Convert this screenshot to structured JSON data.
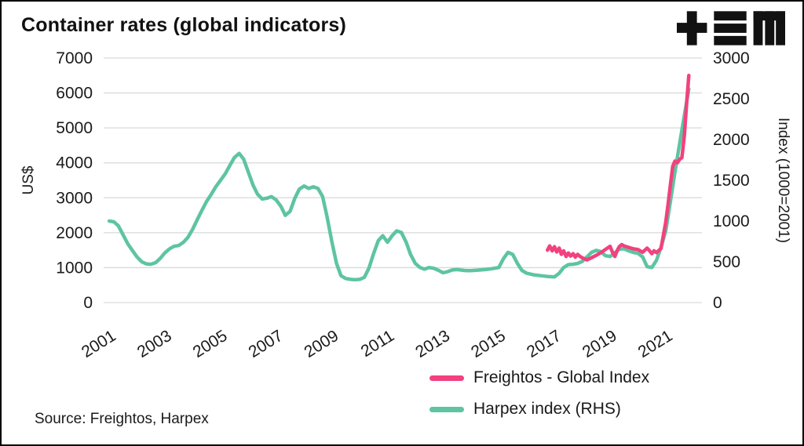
{
  "title": "Container rates (global indicators)",
  "source": "Source: Freightos, Harpex",
  "colors": {
    "freightos_pink": "#f2417f",
    "harpex_green": "#5ec4a2",
    "grid": "#d9d9d9",
    "text": "#1a1a1a",
    "background": "#ffffff",
    "logo_black": "#111111"
  },
  "chart_data": {
    "type": "line",
    "title": "Container rates (global indicators)",
    "xlabel": "",
    "ylabel_left": "US$",
    "ylabel_right": "Index (1000=2001)",
    "xlim": [
      2000.8,
      2022.3
    ],
    "ylim_left": [
      0,
      7000
    ],
    "ylim_right": [
      0,
      3000
    ],
    "yticks_left": [
      0,
      1000,
      2000,
      3000,
      4000,
      5000,
      6000,
      7000
    ],
    "yticks_right": [
      0,
      500,
      1000,
      1500,
      2000,
      2500,
      3000
    ],
    "xticks": [
      2001,
      2003,
      2005,
      2007,
      2009,
      2011,
      2013,
      2015,
      2017,
      2019,
      2021
    ],
    "grid": "horizontal",
    "legend_position": "bottom-right",
    "series": [
      {
        "name": "Freightos - Global Index",
        "axis": "left",
        "color": "#f2417f",
        "points": [
          [
            2016.75,
            1500
          ],
          [
            2016.83,
            1620
          ],
          [
            2016.92,
            1480
          ],
          [
            2017.0,
            1600
          ],
          [
            2017.08,
            1450
          ],
          [
            2017.17,
            1560
          ],
          [
            2017.25,
            1380
          ],
          [
            2017.33,
            1480
          ],
          [
            2017.42,
            1320
          ],
          [
            2017.5,
            1420
          ],
          [
            2017.58,
            1330
          ],
          [
            2017.67,
            1400
          ],
          [
            2017.75,
            1300
          ],
          [
            2017.83,
            1380
          ],
          [
            2017.92,
            1320
          ],
          [
            2018.0,
            1280
          ],
          [
            2018.17,
            1220
          ],
          [
            2018.33,
            1280
          ],
          [
            2018.5,
            1350
          ],
          [
            2018.67,
            1430
          ],
          [
            2018.83,
            1520
          ],
          [
            2019.0,
            1610
          ],
          [
            2019.08,
            1450
          ],
          [
            2019.17,
            1320
          ],
          [
            2019.25,
            1480
          ],
          [
            2019.33,
            1600
          ],
          [
            2019.42,
            1660
          ],
          [
            2019.5,
            1620
          ],
          [
            2019.67,
            1580
          ],
          [
            2019.83,
            1540
          ],
          [
            2020.0,
            1520
          ],
          [
            2020.17,
            1440
          ],
          [
            2020.33,
            1560
          ],
          [
            2020.42,
            1480
          ],
          [
            2020.5,
            1400
          ],
          [
            2020.58,
            1480
          ],
          [
            2020.67,
            1430
          ],
          [
            2020.83,
            1550
          ],
          [
            2021.0,
            2300
          ],
          [
            2021.08,
            2800
          ],
          [
            2021.17,
            3400
          ],
          [
            2021.25,
            3900
          ],
          [
            2021.33,
            4050
          ],
          [
            2021.42,
            4000
          ],
          [
            2021.5,
            4100
          ],
          [
            2021.58,
            4150
          ],
          [
            2021.67,
            4800
          ],
          [
            2021.75,
            5700
          ],
          [
            2021.83,
            6500
          ]
        ]
      },
      {
        "name": "Harpex index (RHS)",
        "axis": "right",
        "color": "#5ec4a2",
        "points": [
          [
            2001.0,
            1000
          ],
          [
            2001.17,
            990
          ],
          [
            2001.33,
            940
          ],
          [
            2001.5,
            830
          ],
          [
            2001.67,
            720
          ],
          [
            2001.83,
            640
          ],
          [
            2002.0,
            560
          ],
          [
            2002.17,
            500
          ],
          [
            2002.33,
            475
          ],
          [
            2002.5,
            470
          ],
          [
            2002.67,
            490
          ],
          [
            2002.83,
            540
          ],
          [
            2003.0,
            610
          ],
          [
            2003.17,
            660
          ],
          [
            2003.33,
            690
          ],
          [
            2003.5,
            700
          ],
          [
            2003.67,
            740
          ],
          [
            2003.83,
            800
          ],
          [
            2004.0,
            900
          ],
          [
            2004.17,
            1020
          ],
          [
            2004.33,
            1130
          ],
          [
            2004.5,
            1240
          ],
          [
            2004.67,
            1330
          ],
          [
            2004.83,
            1420
          ],
          [
            2005.0,
            1500
          ],
          [
            2005.17,
            1580
          ],
          [
            2005.33,
            1680
          ],
          [
            2005.5,
            1780
          ],
          [
            2005.67,
            1830
          ],
          [
            2005.83,
            1760
          ],
          [
            2006.0,
            1600
          ],
          [
            2006.17,
            1440
          ],
          [
            2006.33,
            1330
          ],
          [
            2006.5,
            1270
          ],
          [
            2006.67,
            1280
          ],
          [
            2006.83,
            1300
          ],
          [
            2007.0,
            1260
          ],
          [
            2007.17,
            1180
          ],
          [
            2007.33,
            1070
          ],
          [
            2007.5,
            1120
          ],
          [
            2007.67,
            1280
          ],
          [
            2007.83,
            1390
          ],
          [
            2008.0,
            1430
          ],
          [
            2008.17,
            1400
          ],
          [
            2008.33,
            1420
          ],
          [
            2008.5,
            1400
          ],
          [
            2008.67,
            1300
          ],
          [
            2008.83,
            1050
          ],
          [
            2009.0,
            750
          ],
          [
            2009.17,
            480
          ],
          [
            2009.33,
            330
          ],
          [
            2009.5,
            295
          ],
          [
            2009.67,
            285
          ],
          [
            2009.83,
            280
          ],
          [
            2010.0,
            285
          ],
          [
            2010.17,
            310
          ],
          [
            2010.33,
            420
          ],
          [
            2010.5,
            600
          ],
          [
            2010.67,
            760
          ],
          [
            2010.83,
            820
          ],
          [
            2011.0,
            740
          ],
          [
            2011.17,
            820
          ],
          [
            2011.33,
            880
          ],
          [
            2011.5,
            860
          ],
          [
            2011.67,
            740
          ],
          [
            2011.83,
            590
          ],
          [
            2012.0,
            480
          ],
          [
            2012.17,
            430
          ],
          [
            2012.33,
            410
          ],
          [
            2012.5,
            430
          ],
          [
            2012.67,
            420
          ],
          [
            2012.83,
            395
          ],
          [
            2013.0,
            365
          ],
          [
            2013.17,
            380
          ],
          [
            2013.33,
            400
          ],
          [
            2013.5,
            405
          ],
          [
            2013.67,
            398
          ],
          [
            2013.83,
            392
          ],
          [
            2014.0,
            392
          ],
          [
            2014.25,
            398
          ],
          [
            2014.5,
            405
          ],
          [
            2014.75,
            415
          ],
          [
            2015.0,
            430
          ],
          [
            2015.17,
            540
          ],
          [
            2015.33,
            615
          ],
          [
            2015.5,
            590
          ],
          [
            2015.67,
            480
          ],
          [
            2015.83,
            395
          ],
          [
            2016.0,
            360
          ],
          [
            2016.25,
            340
          ],
          [
            2016.5,
            330
          ],
          [
            2016.75,
            320
          ],
          [
            2017.0,
            315
          ],
          [
            2017.17,
            360
          ],
          [
            2017.33,
            430
          ],
          [
            2017.5,
            465
          ],
          [
            2017.67,
            470
          ],
          [
            2017.83,
            480
          ],
          [
            2018.0,
            505
          ],
          [
            2018.17,
            560
          ],
          [
            2018.33,
            615
          ],
          [
            2018.5,
            640
          ],
          [
            2018.67,
            625
          ],
          [
            2018.83,
            575
          ],
          [
            2019.0,
            565
          ],
          [
            2019.17,
            610
          ],
          [
            2019.33,
            655
          ],
          [
            2019.5,
            660
          ],
          [
            2019.67,
            635
          ],
          [
            2019.83,
            615
          ],
          [
            2020.0,
            605
          ],
          [
            2020.17,
            560
          ],
          [
            2020.33,
            440
          ],
          [
            2020.5,
            430
          ],
          [
            2020.67,
            520
          ],
          [
            2020.83,
            680
          ],
          [
            2021.0,
            880
          ],
          [
            2021.17,
            1250
          ],
          [
            2021.33,
            1600
          ],
          [
            2021.5,
            1950
          ],
          [
            2021.67,
            2300
          ],
          [
            2021.83,
            2620
          ]
        ]
      }
    ]
  }
}
